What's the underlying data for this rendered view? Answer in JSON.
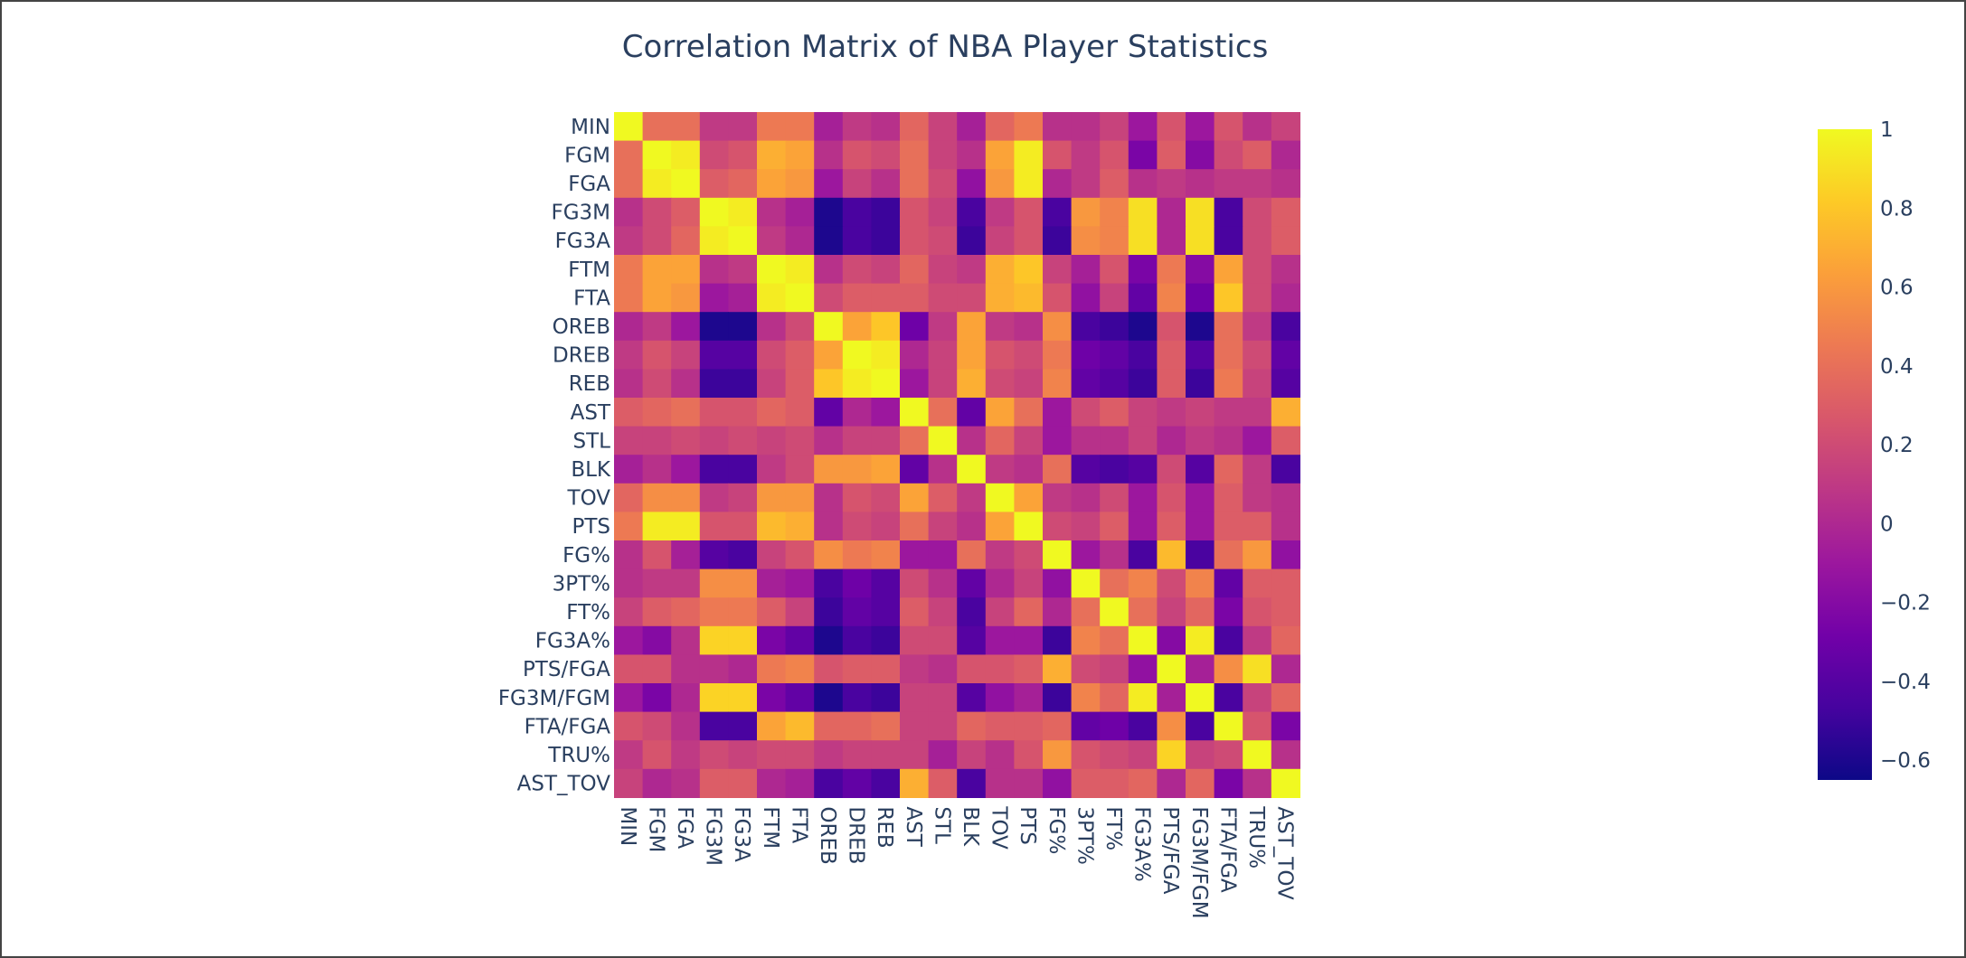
{
  "chart_data": {
    "type": "heatmap",
    "title": "Correlation Matrix of NBA Player Statistics",
    "xlabel": "",
    "ylabel": "",
    "categories": [
      "MIN",
      "FGM",
      "FGA",
      "FG3M",
      "FG3A",
      "FTM",
      "FTA",
      "OREB",
      "DREB",
      "REB",
      "AST",
      "STL",
      "BLK",
      "TOV",
      "PTS",
      "FG%",
      "3PT%",
      "FT%",
      "FG3A%",
      "PTS/FGA",
      "FG3M/FGM",
      "FTA/FGA",
      "TRU%",
      "AST_TOV"
    ],
    "zmin": -0.65,
    "zmax": 1,
    "colorscale": "plasma",
    "colorbar_ticks": [
      {
        "value": 1,
        "label": "1"
      },
      {
        "value": 0.8,
        "label": "0.8"
      },
      {
        "value": 0.6,
        "label": "0.6"
      },
      {
        "value": 0.4,
        "label": "0.4"
      },
      {
        "value": 0.2,
        "label": "0.2"
      },
      {
        "value": 0,
        "label": "0"
      },
      {
        "value": -0.2,
        "label": "−0.2"
      },
      {
        "value": -0.4,
        "label": "−0.4"
      },
      {
        "value": -0.6,
        "label": "−0.6"
      }
    ],
    "colors": [
      "#0d0887",
      "#46039f",
      "#7201a8",
      "#9c179e",
      "#bd3786",
      "#d8576b",
      "#ed7953",
      "#fb9f3a",
      "#fdca26",
      "#f0f921"
    ],
    "z": [
      [
        1.0,
        0.4,
        0.4,
        0.1,
        0.1,
        0.45,
        0.45,
        -0.05,
        0.1,
        0.05,
        0.35,
        0.15,
        -0.05,
        0.35,
        0.45,
        0.05,
        0.05,
        0.15,
        -0.1,
        0.25,
        -0.1,
        0.25,
        0.05,
        0.15
      ],
      [
        0.4,
        1.0,
        0.95,
        0.2,
        0.25,
        0.7,
        0.65,
        0.05,
        0.25,
        0.2,
        0.4,
        0.15,
        0.05,
        0.65,
        0.95,
        0.25,
        0.1,
        0.25,
        -0.25,
        0.3,
        -0.2,
        0.2,
        0.3,
        0.0
      ],
      [
        0.4,
        0.95,
        1.0,
        0.3,
        0.35,
        0.65,
        0.6,
        -0.1,
        0.15,
        0.05,
        0.4,
        0.2,
        -0.15,
        0.6,
        0.95,
        0.0,
        0.1,
        0.3,
        0.05,
        0.1,
        0.05,
        0.1,
        0.1,
        0.05
      ],
      [
        0.05,
        0.2,
        0.3,
        1.0,
        0.95,
        0.05,
        -0.05,
        -0.6,
        -0.45,
        -0.5,
        0.25,
        0.15,
        -0.45,
        0.1,
        0.25,
        -0.45,
        0.6,
        0.5,
        0.9,
        0.0,
        0.9,
        -0.45,
        0.2,
        0.3
      ],
      [
        0.1,
        0.2,
        0.35,
        0.95,
        1.0,
        0.1,
        0.0,
        -0.6,
        -0.45,
        -0.5,
        0.25,
        0.2,
        -0.5,
        0.15,
        0.25,
        -0.5,
        0.55,
        0.5,
        0.9,
        0.0,
        0.9,
        -0.45,
        0.2,
        0.3
      ],
      [
        0.45,
        0.65,
        0.65,
        0.05,
        0.1,
        1.0,
        0.95,
        0.05,
        0.2,
        0.15,
        0.35,
        0.15,
        0.1,
        0.7,
        0.8,
        0.15,
        -0.05,
        0.25,
        -0.25,
        0.45,
        -0.2,
        0.65,
        0.2,
        0.05
      ],
      [
        0.45,
        0.65,
        0.6,
        -0.1,
        -0.05,
        0.95,
        1.0,
        0.2,
        0.3,
        0.3,
        0.3,
        0.2,
        0.2,
        0.7,
        0.75,
        0.25,
        -0.15,
        0.15,
        -0.35,
        0.5,
        -0.3,
        0.8,
        0.2,
        0.0
      ],
      [
        0.0,
        0.1,
        -0.1,
        -0.6,
        -0.6,
        0.05,
        0.2,
        1.0,
        0.65,
        0.8,
        -0.3,
        0.1,
        0.65,
        0.1,
        0.05,
        0.55,
        -0.45,
        -0.5,
        -0.6,
        0.25,
        -0.6,
        0.4,
        0.1,
        -0.45
      ],
      [
        0.1,
        0.25,
        0.15,
        -0.4,
        -0.4,
        0.2,
        0.3,
        0.65,
        1.0,
        0.95,
        0.0,
        0.15,
        0.65,
        0.25,
        0.2,
        0.45,
        -0.3,
        -0.35,
        -0.45,
        0.3,
        -0.4,
        0.4,
        0.2,
        -0.35
      ],
      [
        0.05,
        0.2,
        0.05,
        -0.5,
        -0.5,
        0.15,
        0.3,
        0.8,
        0.95,
        1.0,
        -0.1,
        0.15,
        0.7,
        0.2,
        0.15,
        0.5,
        -0.35,
        -0.4,
        -0.5,
        0.3,
        -0.5,
        0.45,
        0.15,
        -0.4
      ],
      [
        0.3,
        0.35,
        0.4,
        0.25,
        0.25,
        0.35,
        0.3,
        -0.35,
        0.0,
        -0.1,
        1.0,
        0.4,
        -0.35,
        0.65,
        0.4,
        -0.1,
        0.2,
        0.3,
        0.15,
        0.1,
        0.15,
        0.1,
        0.1,
        0.7
      ],
      [
        0.15,
        0.15,
        0.2,
        0.15,
        0.2,
        0.15,
        0.2,
        0.05,
        0.15,
        0.15,
        0.4,
        1.0,
        0.05,
        0.35,
        0.15,
        -0.1,
        0.05,
        0.05,
        0.15,
        0.0,
        0.1,
        0.05,
        -0.1,
        0.3
      ],
      [
        -0.05,
        0.05,
        -0.1,
        -0.45,
        -0.45,
        0.1,
        0.2,
        0.6,
        0.6,
        0.65,
        -0.35,
        0.05,
        1.0,
        0.1,
        0.05,
        0.4,
        -0.4,
        -0.45,
        -0.4,
        0.2,
        -0.4,
        0.35,
        0.1,
        -0.45
      ],
      [
        0.35,
        0.55,
        0.55,
        0.1,
        0.15,
        0.6,
        0.6,
        0.05,
        0.25,
        0.2,
        0.65,
        0.3,
        0.1,
        1.0,
        0.65,
        0.1,
        0.05,
        0.2,
        -0.1,
        0.25,
        -0.1,
        0.3,
        0.1,
        0.05
      ],
      [
        0.45,
        0.95,
        0.95,
        0.25,
        0.25,
        0.75,
        0.7,
        0.05,
        0.2,
        0.15,
        0.4,
        0.15,
        0.05,
        0.65,
        1.0,
        0.2,
        0.15,
        0.3,
        -0.1,
        0.3,
        -0.1,
        0.3,
        0.3,
        0.05
      ],
      [
        0.05,
        0.25,
        -0.05,
        -0.4,
        -0.45,
        0.15,
        0.25,
        0.55,
        0.45,
        0.5,
        -0.1,
        -0.1,
        0.4,
        0.1,
        0.2,
        1.0,
        -0.1,
        0.05,
        -0.45,
        0.75,
        -0.45,
        0.4,
        0.6,
        -0.15
      ],
      [
        0.05,
        0.1,
        0.1,
        0.55,
        0.55,
        -0.05,
        -0.1,
        -0.45,
        -0.3,
        -0.4,
        0.2,
        0.05,
        -0.35,
        0.0,
        0.15,
        -0.15,
        1.0,
        0.4,
        0.5,
        0.2,
        0.5,
        -0.35,
        0.3,
        0.3
      ],
      [
        0.15,
        0.3,
        0.35,
        0.45,
        0.45,
        0.3,
        0.15,
        -0.5,
        -0.35,
        -0.4,
        0.3,
        0.15,
        -0.45,
        0.15,
        0.35,
        0.0,
        0.4,
        1.0,
        0.4,
        0.15,
        0.35,
        -0.25,
        0.25,
        0.3
      ],
      [
        -0.1,
        -0.2,
        0.05,
        0.85,
        0.85,
        -0.25,
        -0.35,
        -0.6,
        -0.45,
        -0.5,
        0.2,
        0.2,
        -0.4,
        -0.1,
        -0.1,
        -0.5,
        0.5,
        0.4,
        1.0,
        -0.2,
        0.95,
        -0.45,
        0.1,
        0.35
      ],
      [
        0.25,
        0.25,
        0.05,
        0.05,
        0.0,
        0.45,
        0.5,
        0.25,
        0.3,
        0.3,
        0.1,
        0.05,
        0.25,
        0.25,
        0.3,
        0.7,
        0.2,
        0.15,
        -0.15,
        1.0,
        -0.05,
        0.55,
        0.9,
        0.0
      ],
      [
        -0.1,
        -0.25,
        0.0,
        0.85,
        0.85,
        -0.25,
        -0.35,
        -0.6,
        -0.45,
        -0.5,
        0.15,
        0.15,
        -0.4,
        -0.15,
        -0.05,
        -0.5,
        0.5,
        0.35,
        0.95,
        -0.05,
        1.0,
        -0.45,
        0.15,
        0.35
      ],
      [
        0.25,
        0.2,
        0.05,
        -0.45,
        -0.45,
        0.65,
        0.75,
        0.35,
        0.35,
        0.4,
        0.15,
        0.15,
        0.35,
        0.3,
        0.3,
        0.35,
        -0.35,
        -0.3,
        -0.45,
        0.55,
        -0.45,
        1.0,
        0.25,
        -0.25
      ],
      [
        0.1,
        0.25,
        0.1,
        0.2,
        0.15,
        0.2,
        0.2,
        0.1,
        0.15,
        0.15,
        0.15,
        -0.05,
        0.15,
        0.05,
        0.25,
        0.6,
        0.25,
        0.2,
        0.15,
        0.85,
        0.15,
        0.2,
        1.0,
        0.05
      ],
      [
        0.15,
        0.0,
        0.05,
        0.3,
        0.3,
        0.0,
        -0.05,
        -0.45,
        -0.35,
        -0.45,
        0.7,
        0.3,
        -0.45,
        0.05,
        0.05,
        -0.15,
        0.3,
        0.3,
        0.35,
        0.0,
        0.35,
        -0.25,
        0.05,
        1.0
      ]
    ]
  }
}
